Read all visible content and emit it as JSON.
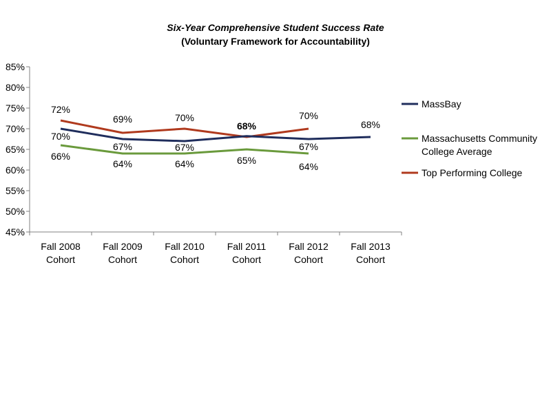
{
  "chart_data": {
    "type": "line",
    "title": "Six-Year Comprehensive Student Success Rate",
    "subtitle": "(Voluntary Framework for Accountability)",
    "categories": [
      "Fall 2008 Cohort",
      "Fall 2009 Cohort",
      "Fall 2010 Cohort",
      "Fall 2011 Cohort",
      "Fall 2012 Cohort",
      "Fall 2013 Cohort"
    ],
    "y_ticks": [
      "45%",
      "50%",
      "55%",
      "60%",
      "65%",
      "70%",
      "75%",
      "80%",
      "85%"
    ],
    "ylim": [
      45,
      85
    ],
    "y_unit": "%",
    "legend_position": "right",
    "series": [
      {
        "name": "MassBay",
        "color": "#1f2d5c",
        "values": [
          70,
          67.5,
          67,
          68.2,
          67.5,
          68
        ],
        "labels": [
          "70%",
          null,
          null,
          "68%",
          null,
          "68%"
        ]
      },
      {
        "name": "Massachusetts Community College Average",
        "color": "#6a9a3c",
        "values": [
          66,
          64,
          64,
          65,
          64,
          null
        ],
        "labels": [
          "66%",
          "64%",
          "64%",
          "65%",
          "64%",
          null
        ]
      },
      {
        "name": "Top Performing College",
        "color": "#b03a1e",
        "values": [
          72,
          69,
          70,
          68,
          70,
          null
        ],
        "labels": [
          "72%",
          "69%",
          "70%",
          null,
          "70%",
          null
        ]
      }
    ],
    "extra_labels": [
      "67%",
      "67%",
      "67%"
    ]
  }
}
